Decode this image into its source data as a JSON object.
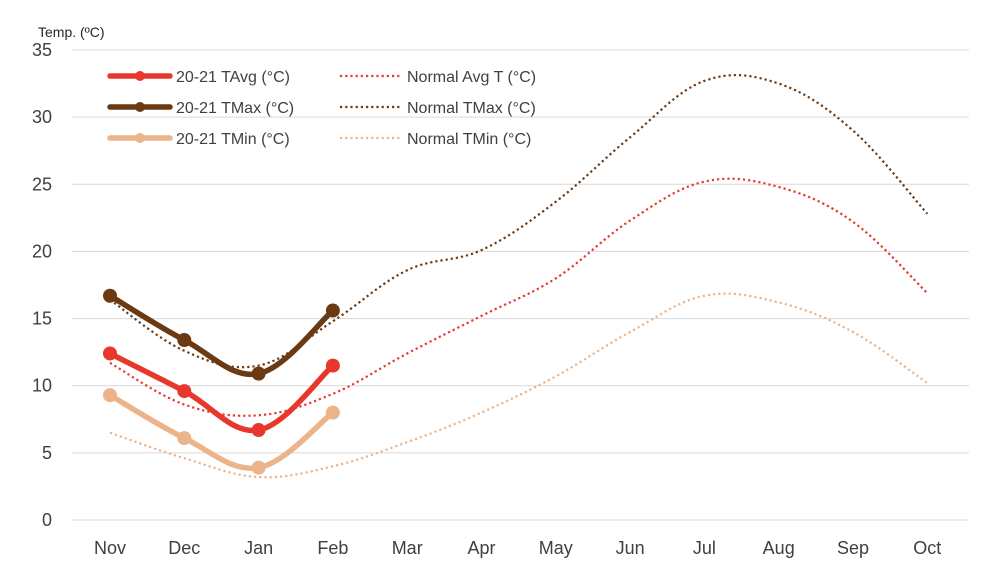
{
  "chart_data": {
    "type": "line",
    "title": "",
    "ylabel": "Temp. (ºC)",
    "xlabel": "",
    "categories": [
      "Nov",
      "Dec",
      "Jan",
      "Feb",
      "Mar",
      "Apr",
      "May",
      "Jun",
      "Jul",
      "Aug",
      "Sep",
      "Oct"
    ],
    "ylim": [
      0,
      35
    ],
    "yticks": [
      0,
      5,
      10,
      15,
      20,
      25,
      30,
      35
    ],
    "grid": true,
    "legend_position": "top-left",
    "series": [
      {
        "name": "20-21  TAvg (°C)",
        "style": "solid",
        "color": "#e8372c",
        "values": [
          12.4,
          9.6,
          6.7,
          11.5,
          null,
          null,
          null,
          null,
          null,
          null,
          null,
          null
        ]
      },
      {
        "name": "Normal  Avg T (°C)",
        "style": "dotted",
        "color": "#e8372c",
        "values": [
          11.7,
          8.6,
          7.8,
          9.4,
          12.4,
          15.2,
          18.0,
          22.3,
          25.2,
          24.8,
          22.2,
          16.9
        ]
      },
      {
        "name": "20-21  TMax (°C)",
        "style": "solid",
        "color": "#6b3a13",
        "values": [
          16.7,
          13.4,
          10.9,
          15.6,
          null,
          null,
          null,
          null,
          null,
          null,
          null,
          null
        ]
      },
      {
        "name": "Normal  TMax (°C)",
        "style": "dotted",
        "color": "#6b3a13",
        "values": [
          16.4,
          12.6,
          11.5,
          14.8,
          18.6,
          20.1,
          23.7,
          28.5,
          32.7,
          32.5,
          29.0,
          22.8
        ]
      },
      {
        "name": "20-21  TMin (°C)",
        "style": "solid",
        "color": "#ebb48a",
        "values": [
          9.3,
          6.1,
          3.9,
          8.0,
          null,
          null,
          null,
          null,
          null,
          null,
          null,
          null
        ]
      },
      {
        "name": "Normal  TMin (°C)",
        "style": "dotted",
        "color": "#ebb48a",
        "values": [
          6.5,
          4.6,
          3.2,
          4.0,
          5.8,
          8.0,
          10.7,
          14.0,
          16.7,
          16.2,
          14.0,
          10.2
        ]
      }
    ]
  }
}
